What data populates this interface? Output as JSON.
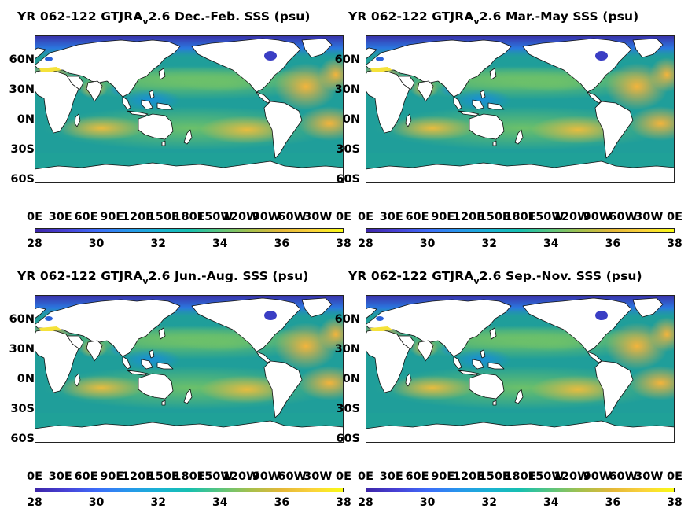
{
  "colors": {
    "land": "#ffffff",
    "ocean_base": "#1f9e9a",
    "colormap": [
      "#3d26a8",
      "#4741d6",
      "#3d6cf9",
      "#2796ec",
      "#1ab2d3",
      "#17c0b0",
      "#5ac57e",
      "#a6c04c",
      "#e4b838",
      "#fad23b",
      "#f9fb14"
    ]
  },
  "colorbar": {
    "min": 28,
    "max": 38,
    "ticks": [
      "28",
      "30",
      "32",
      "34",
      "36",
      "38"
    ],
    "units": "psu"
  },
  "axes": {
    "lat_ticks": [
      "60N",
      "30N",
      "0N",
      "30S",
      "60S"
    ],
    "lon_ticks": [
      "0E",
      "30E",
      "60E",
      "90E",
      "120E",
      "150E",
      "180E",
      "150W",
      "120W",
      "90W",
      "60W",
      "30W",
      "0E"
    ]
  },
  "panels": [
    {
      "title_pre": "YR 062-122 GTJRA",
      "title_sub": "v",
      "title_post": "2.6 Dec.-Feb. SSS (psu)",
      "season": "DJF"
    },
    {
      "title_pre": "YR 062-122 GTJRA",
      "title_sub": "v",
      "title_post": "2.6 Mar.-May SSS (psu)",
      "season": "MAM"
    },
    {
      "title_pre": "YR 062-122 GTJRA",
      "title_sub": "v",
      "title_post": "2.6 Jun.-Aug. SSS (psu)",
      "season": "JJA"
    },
    {
      "title_pre": "YR 062-122 GTJRA",
      "title_sub": "v",
      "title_post": "2.6 Sep.-Nov. SSS (psu)",
      "season": "SON"
    }
  ]
}
